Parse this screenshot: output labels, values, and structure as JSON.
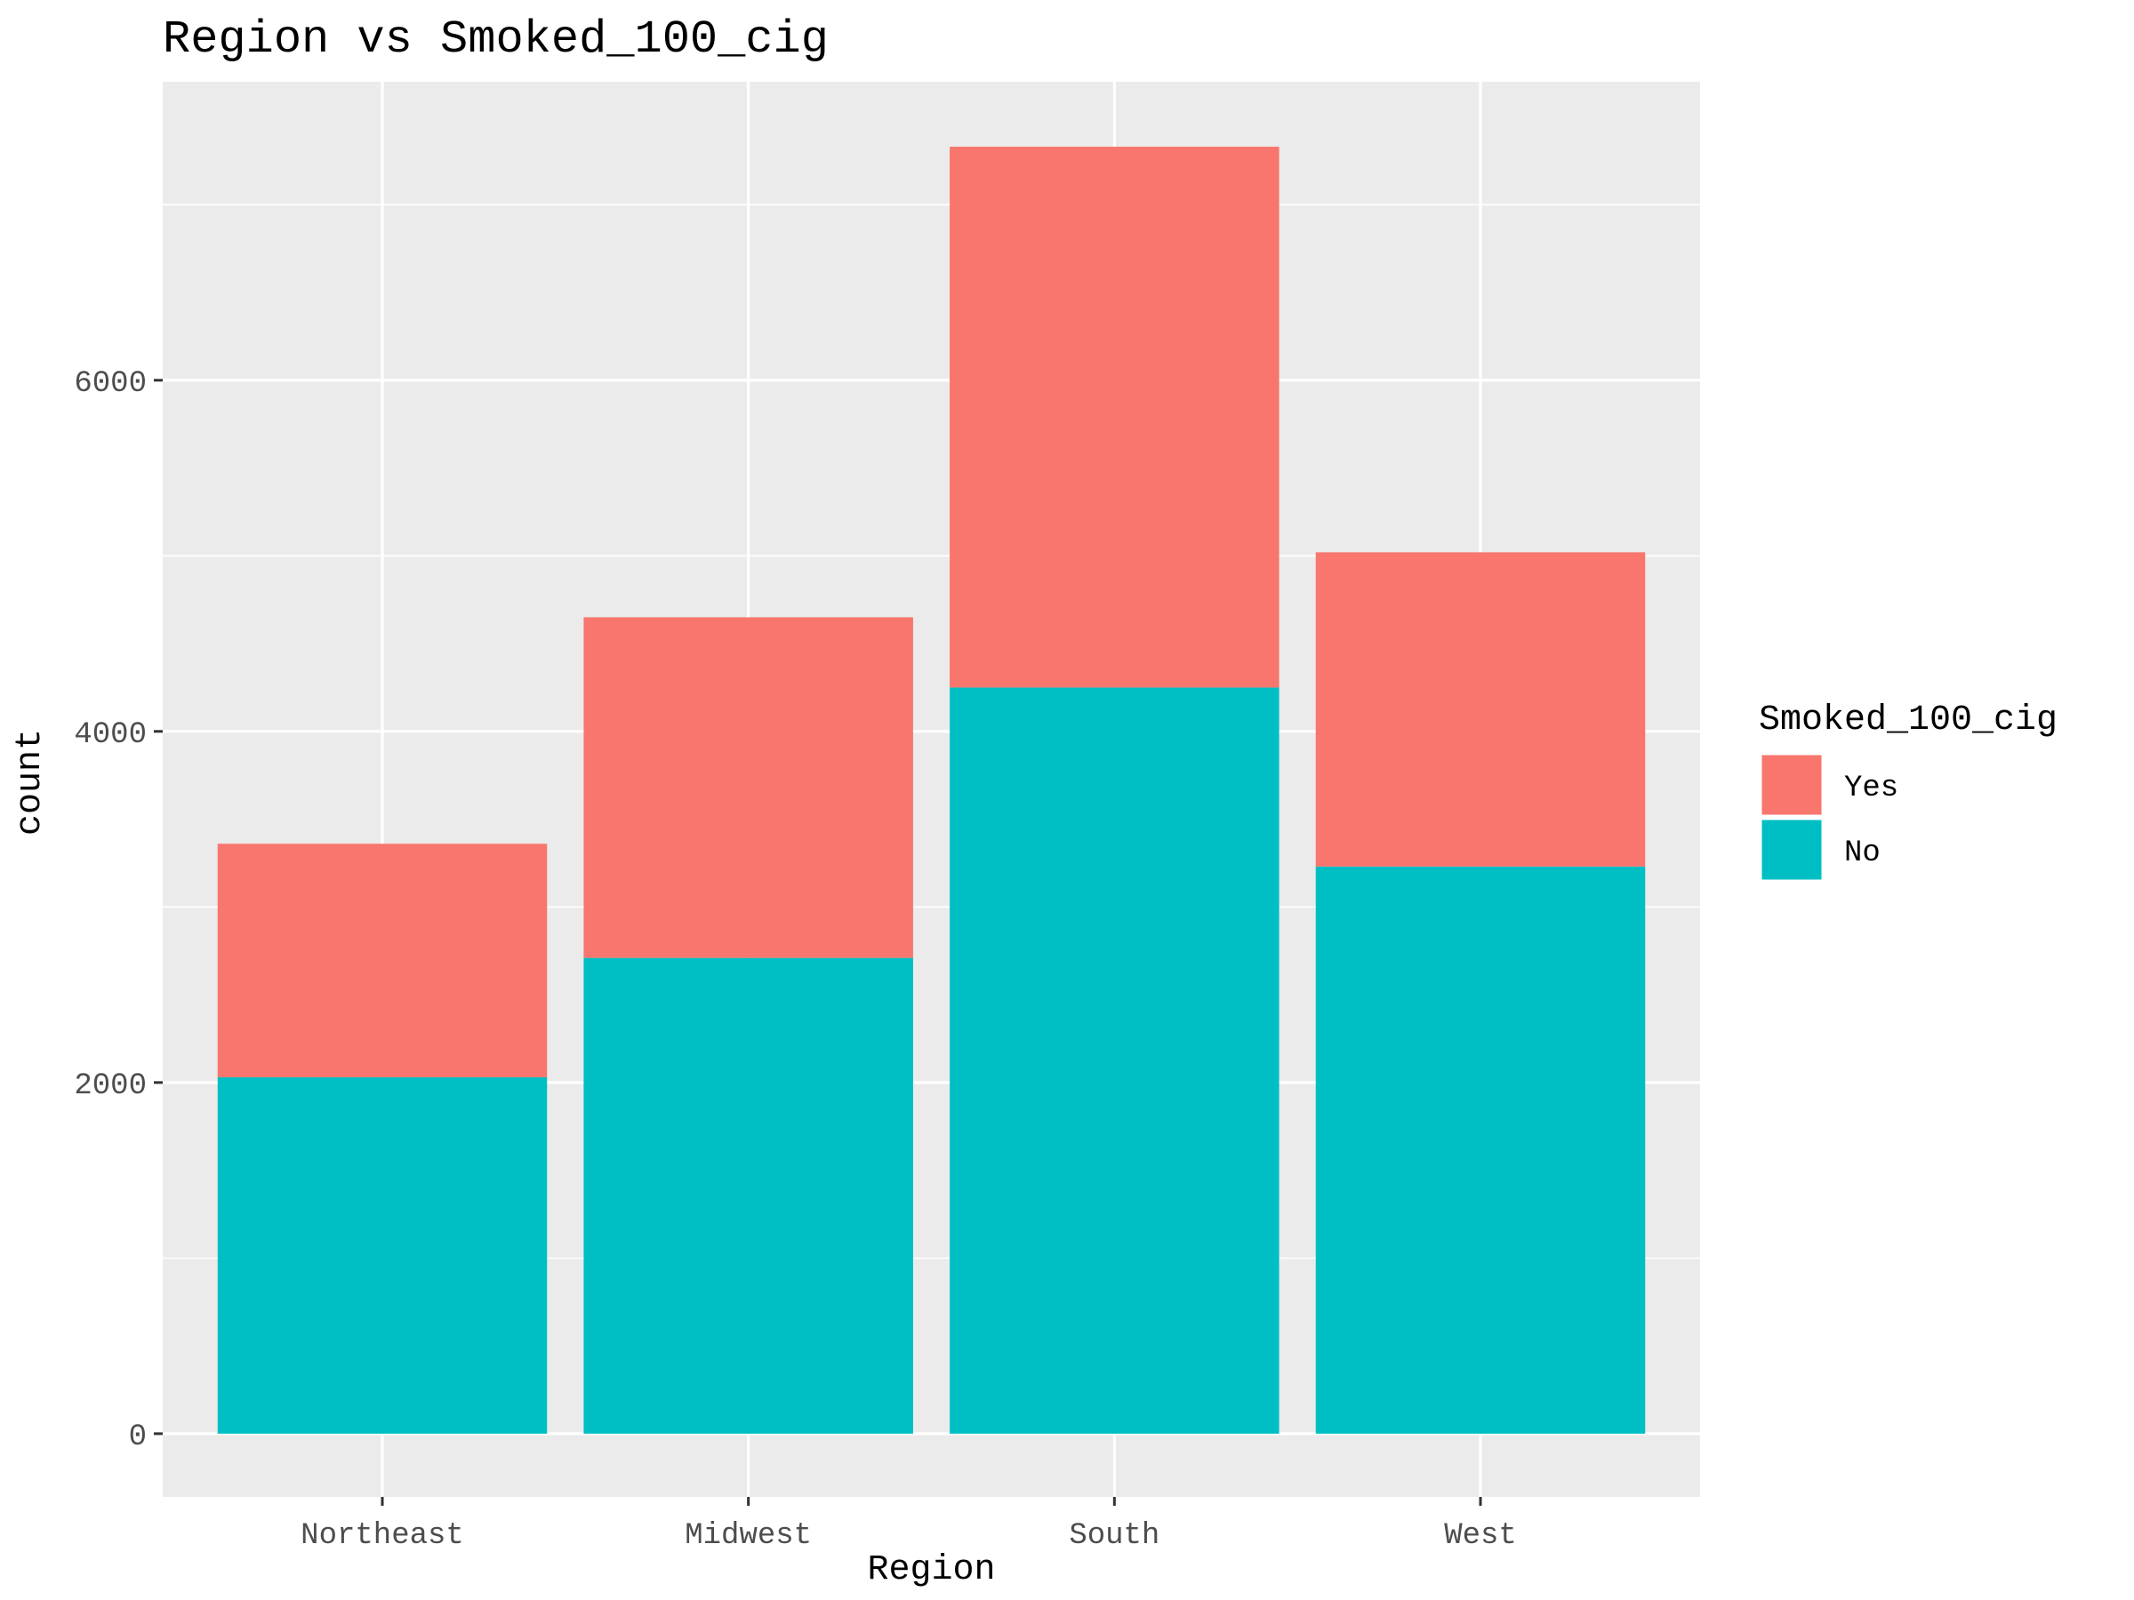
{
  "chart_data": {
    "type": "bar",
    "stacked": true,
    "title": "Region vs Smoked_100_cig",
    "xlabel": "Region",
    "ylabel": "count",
    "categories": [
      "Northeast",
      "Midwest",
      "South",
      "West"
    ],
    "series": [
      {
        "name": "No",
        "values": [
          2030,
          2710,
          4250,
          3230
        ],
        "color": "#00BFC4"
      },
      {
        "name": "Yes",
        "values": [
          1330,
          1940,
          3080,
          1790
        ],
        "color": "#F8766D"
      }
    ],
    "ylim": [
      -360,
      7700
    ],
    "yticks": [
      0,
      2000,
      4000,
      6000
    ],
    "grid": true,
    "panel_background": "#EBEBEB",
    "grid_color": "#FFFFFF",
    "legend": {
      "title": "Smoked_100_cig",
      "position": "right",
      "entries": [
        {
          "label": "Yes",
          "color": "#F8766D"
        },
        {
          "label": "No",
          "color": "#00BFC4"
        }
      ]
    }
  }
}
